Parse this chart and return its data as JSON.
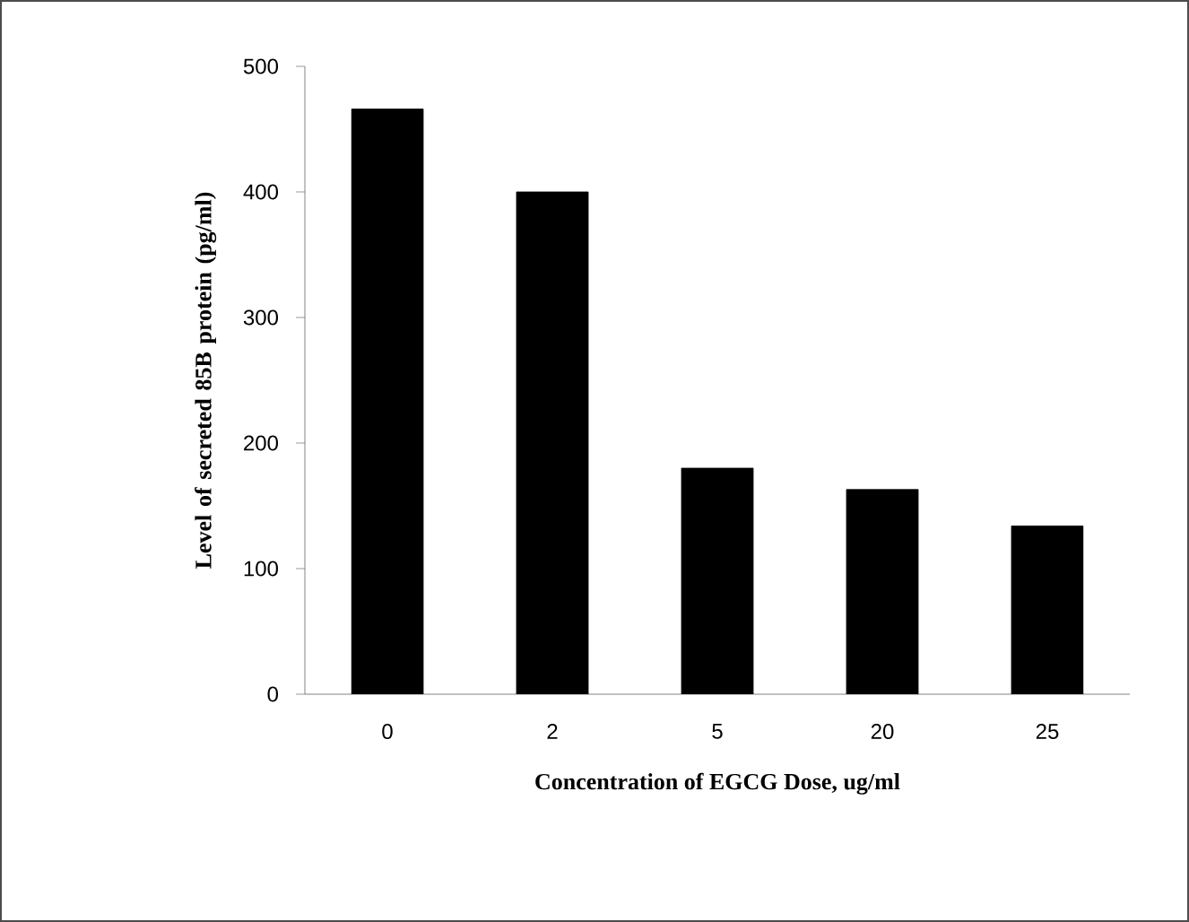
{
  "chart_data": {
    "type": "bar",
    "xlabel": "Concentration of EGCG Dose, ug/ml",
    "ylabel": "Level of secreted 85B protein (pg/ml)",
    "categories": [
      "0",
      "2",
      "5",
      "20",
      "25"
    ],
    "values": [
      466,
      400,
      180,
      163,
      134
    ],
    "color": "#000000",
    "ylim": [
      0,
      500
    ],
    "yticks": [
      0,
      100,
      200,
      300,
      400,
      500
    ]
  }
}
